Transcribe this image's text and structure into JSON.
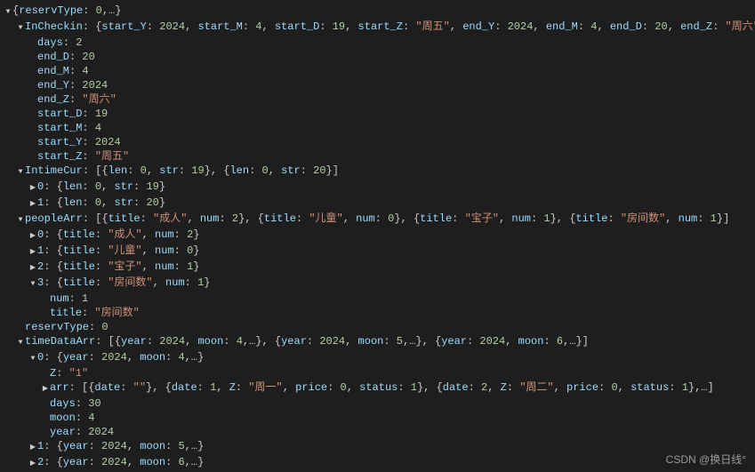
{
  "arrows": {
    "down": "▼",
    "right": "▶"
  },
  "line0": {
    "arrow": "down",
    "segs": [
      [
        "p",
        "{"
      ],
      [
        "k",
        "reservType"
      ],
      [
        "p",
        ": "
      ],
      [
        "n",
        "0"
      ],
      [
        "p",
        ",…}"
      ]
    ]
  },
  "line1": {
    "arrow": "down",
    "indent": 1,
    "segs": [
      [
        "k",
        "InCheckin"
      ],
      [
        "p",
        ": {"
      ],
      [
        "k",
        "start_Y"
      ],
      [
        "p",
        ": "
      ],
      [
        "n",
        "2024"
      ],
      [
        "p",
        ", "
      ],
      [
        "k",
        "start_M"
      ],
      [
        "p",
        ": "
      ],
      [
        "n",
        "4"
      ],
      [
        "p",
        ", "
      ],
      [
        "k",
        "start_D"
      ],
      [
        "p",
        ": "
      ],
      [
        "n",
        "19"
      ],
      [
        "p",
        ", "
      ],
      [
        "k",
        "start_Z"
      ],
      [
        "p",
        ": "
      ],
      [
        "s",
        "\"周五\""
      ],
      [
        "p",
        ", "
      ],
      [
        "k",
        "end_Y"
      ],
      [
        "p",
        ": "
      ],
      [
        "n",
        "2024"
      ],
      [
        "p",
        ", "
      ],
      [
        "k",
        "end_M"
      ],
      [
        "p",
        ": "
      ],
      [
        "n",
        "4"
      ],
      [
        "p",
        ", "
      ],
      [
        "k",
        "end_D"
      ],
      [
        "p",
        ": "
      ],
      [
        "n",
        "20"
      ],
      [
        "p",
        ", "
      ],
      [
        "k",
        "end_Z"
      ],
      [
        "p",
        ": "
      ],
      [
        "s",
        "\"周六\""
      ],
      [
        "p",
        ",…}"
      ]
    ]
  },
  "line2": {
    "indent": 2,
    "segs": [
      [
        "k",
        "days"
      ],
      [
        "p",
        ": "
      ],
      [
        "n",
        "2"
      ]
    ]
  },
  "line3": {
    "indent": 2,
    "segs": [
      [
        "k",
        "end_D"
      ],
      [
        "p",
        ": "
      ],
      [
        "n",
        "20"
      ]
    ]
  },
  "line4": {
    "indent": 2,
    "segs": [
      [
        "k",
        "end_M"
      ],
      [
        "p",
        ": "
      ],
      [
        "n",
        "4"
      ]
    ]
  },
  "line5": {
    "indent": 2,
    "segs": [
      [
        "k",
        "end_Y"
      ],
      [
        "p",
        ": "
      ],
      [
        "n",
        "2024"
      ]
    ]
  },
  "line6": {
    "indent": 2,
    "segs": [
      [
        "k",
        "end_Z"
      ],
      [
        "p",
        ": "
      ],
      [
        "s",
        "\"周六\""
      ]
    ]
  },
  "line7": {
    "indent": 2,
    "segs": [
      [
        "k",
        "start_D"
      ],
      [
        "p",
        ": "
      ],
      [
        "n",
        "19"
      ]
    ]
  },
  "line8": {
    "indent": 2,
    "segs": [
      [
        "k",
        "start_M"
      ],
      [
        "p",
        ": "
      ],
      [
        "n",
        "4"
      ]
    ]
  },
  "line9": {
    "indent": 2,
    "segs": [
      [
        "k",
        "start_Y"
      ],
      [
        "p",
        ": "
      ],
      [
        "n",
        "2024"
      ]
    ]
  },
  "line10": {
    "indent": 2,
    "segs": [
      [
        "k",
        "start_Z"
      ],
      [
        "p",
        ": "
      ],
      [
        "s",
        "\"周五\""
      ]
    ]
  },
  "line11": {
    "arrow": "down",
    "indent": 1,
    "segs": [
      [
        "k",
        "IntimeCur"
      ],
      [
        "p",
        ": [{"
      ],
      [
        "k",
        "len"
      ],
      [
        "p",
        ": "
      ],
      [
        "n",
        "0"
      ],
      [
        "p",
        ", "
      ],
      [
        "k",
        "str"
      ],
      [
        "p",
        ": "
      ],
      [
        "n",
        "19"
      ],
      [
        "p",
        "}, {"
      ],
      [
        "k",
        "len"
      ],
      [
        "p",
        ": "
      ],
      [
        "n",
        "0"
      ],
      [
        "p",
        ", "
      ],
      [
        "k",
        "str"
      ],
      [
        "p",
        ": "
      ],
      [
        "n",
        "20"
      ],
      [
        "p",
        "}]"
      ]
    ]
  },
  "line12": {
    "arrow": "right",
    "indent": 2,
    "segs": [
      [
        "k",
        "0"
      ],
      [
        "p",
        ": {"
      ],
      [
        "k",
        "len"
      ],
      [
        "p",
        ": "
      ],
      [
        "n",
        "0"
      ],
      [
        "p",
        ", "
      ],
      [
        "k",
        "str"
      ],
      [
        "p",
        ": "
      ],
      [
        "n",
        "19"
      ],
      [
        "p",
        "}"
      ]
    ]
  },
  "line13": {
    "arrow": "right",
    "indent": 2,
    "segs": [
      [
        "k",
        "1"
      ],
      [
        "p",
        ": {"
      ],
      [
        "k",
        "len"
      ],
      [
        "p",
        ": "
      ],
      [
        "n",
        "0"
      ],
      [
        "p",
        ", "
      ],
      [
        "k",
        "str"
      ],
      [
        "p",
        ": "
      ],
      [
        "n",
        "20"
      ],
      [
        "p",
        "}"
      ]
    ]
  },
  "line14": {
    "arrow": "down",
    "indent": 1,
    "segs": [
      [
        "k",
        "peopleArr"
      ],
      [
        "p",
        ": [{"
      ],
      [
        "k",
        "title"
      ],
      [
        "p",
        ": "
      ],
      [
        "s",
        "\"成人\""
      ],
      [
        "p",
        ", "
      ],
      [
        "k",
        "num"
      ],
      [
        "p",
        ": "
      ],
      [
        "n",
        "2"
      ],
      [
        "p",
        "}, {"
      ],
      [
        "k",
        "title"
      ],
      [
        "p",
        ": "
      ],
      [
        "s",
        "\"儿童\""
      ],
      [
        "p",
        ", "
      ],
      [
        "k",
        "num"
      ],
      [
        "p",
        ": "
      ],
      [
        "n",
        "0"
      ],
      [
        "p",
        "}, {"
      ],
      [
        "k",
        "title"
      ],
      [
        "p",
        ": "
      ],
      [
        "s",
        "\"宝子\""
      ],
      [
        "p",
        ", "
      ],
      [
        "k",
        "num"
      ],
      [
        "p",
        ": "
      ],
      [
        "n",
        "1"
      ],
      [
        "p",
        "}, {"
      ],
      [
        "k",
        "title"
      ],
      [
        "p",
        ": "
      ],
      [
        "s",
        "\"房间数\""
      ],
      [
        "p",
        ", "
      ],
      [
        "k",
        "num"
      ],
      [
        "p",
        ": "
      ],
      [
        "n",
        "1"
      ],
      [
        "p",
        "}]"
      ]
    ]
  },
  "line15": {
    "arrow": "right",
    "indent": 2,
    "segs": [
      [
        "k",
        "0"
      ],
      [
        "p",
        ": {"
      ],
      [
        "k",
        "title"
      ],
      [
        "p",
        ": "
      ],
      [
        "s",
        "\"成人\""
      ],
      [
        "p",
        ", "
      ],
      [
        "k",
        "num"
      ],
      [
        "p",
        ": "
      ],
      [
        "n",
        "2"
      ],
      [
        "p",
        "}"
      ]
    ]
  },
  "line16": {
    "arrow": "right",
    "indent": 2,
    "segs": [
      [
        "k",
        "1"
      ],
      [
        "p",
        ": {"
      ],
      [
        "k",
        "title"
      ],
      [
        "p",
        ": "
      ],
      [
        "s",
        "\"儿童\""
      ],
      [
        "p",
        ", "
      ],
      [
        "k",
        "num"
      ],
      [
        "p",
        ": "
      ],
      [
        "n",
        "0"
      ],
      [
        "p",
        "}"
      ]
    ]
  },
  "line17": {
    "arrow": "right",
    "indent": 2,
    "segs": [
      [
        "k",
        "2"
      ],
      [
        "p",
        ": {"
      ],
      [
        "k",
        "title"
      ],
      [
        "p",
        ": "
      ],
      [
        "s",
        "\"宝子\""
      ],
      [
        "p",
        ", "
      ],
      [
        "k",
        "num"
      ],
      [
        "p",
        ": "
      ],
      [
        "n",
        "1"
      ],
      [
        "p",
        "}"
      ]
    ]
  },
  "line18": {
    "arrow": "down",
    "indent": 2,
    "segs": [
      [
        "k",
        "3"
      ],
      [
        "p",
        ": {"
      ],
      [
        "k",
        "title"
      ],
      [
        "p",
        ": "
      ],
      [
        "s",
        "\"房间数\""
      ],
      [
        "p",
        ", "
      ],
      [
        "k",
        "num"
      ],
      [
        "p",
        ": "
      ],
      [
        "n",
        "1"
      ],
      [
        "p",
        "}"
      ]
    ]
  },
  "line19": {
    "indent": 3,
    "segs": [
      [
        "k",
        "num"
      ],
      [
        "p",
        ": "
      ],
      [
        "n",
        "1"
      ]
    ]
  },
  "line20": {
    "indent": 3,
    "segs": [
      [
        "k",
        "title"
      ],
      [
        "p",
        ": "
      ],
      [
        "s",
        "\"房间数\""
      ]
    ]
  },
  "line21": {
    "indent": 1,
    "segs": [
      [
        "k",
        "reservType"
      ],
      [
        "p",
        ": "
      ],
      [
        "n",
        "0"
      ]
    ]
  },
  "line22": {
    "arrow": "down",
    "indent": 1,
    "segs": [
      [
        "k",
        "timeDataArr"
      ],
      [
        "p",
        ": [{"
      ],
      [
        "k",
        "year"
      ],
      [
        "p",
        ": "
      ],
      [
        "n",
        "2024"
      ],
      [
        "p",
        ", "
      ],
      [
        "k",
        "moon"
      ],
      [
        "p",
        ": "
      ],
      [
        "n",
        "4"
      ],
      [
        "p",
        ",…}, {"
      ],
      [
        "k",
        "year"
      ],
      [
        "p",
        ": "
      ],
      [
        "n",
        "2024"
      ],
      [
        "p",
        ", "
      ],
      [
        "k",
        "moon"
      ],
      [
        "p",
        ": "
      ],
      [
        "n",
        "5"
      ],
      [
        "p",
        ",…}, {"
      ],
      [
        "k",
        "year"
      ],
      [
        "p",
        ": "
      ],
      [
        "n",
        "2024"
      ],
      [
        "p",
        ", "
      ],
      [
        "k",
        "moon"
      ],
      [
        "p",
        ": "
      ],
      [
        "n",
        "6"
      ],
      [
        "p",
        ",…}]"
      ]
    ]
  },
  "line23": {
    "arrow": "down",
    "indent": 2,
    "segs": [
      [
        "k",
        "0"
      ],
      [
        "p",
        ": {"
      ],
      [
        "k",
        "year"
      ],
      [
        "p",
        ": "
      ],
      [
        "n",
        "2024"
      ],
      [
        "p",
        ", "
      ],
      [
        "k",
        "moon"
      ],
      [
        "p",
        ": "
      ],
      [
        "n",
        "4"
      ],
      [
        "p",
        ",…}"
      ]
    ]
  },
  "line24": {
    "indent": 3,
    "segs": [
      [
        "k",
        "Z"
      ],
      [
        "p",
        ": "
      ],
      [
        "s",
        "\"1\""
      ]
    ]
  },
  "line25": {
    "arrow": "right",
    "indent": 3,
    "segs": [
      [
        "k",
        "arr"
      ],
      [
        "p",
        ": [{"
      ],
      [
        "k",
        "date"
      ],
      [
        "p",
        ": "
      ],
      [
        "s",
        "\"\""
      ],
      [
        "p",
        "}, {"
      ],
      [
        "k",
        "date"
      ],
      [
        "p",
        ": "
      ],
      [
        "n",
        "1"
      ],
      [
        "p",
        ", "
      ],
      [
        "k",
        "Z"
      ],
      [
        "p",
        ": "
      ],
      [
        "s",
        "\"周一\""
      ],
      [
        "p",
        ", "
      ],
      [
        "k",
        "price"
      ],
      [
        "p",
        ": "
      ],
      [
        "n",
        "0"
      ],
      [
        "p",
        ", "
      ],
      [
        "k",
        "status"
      ],
      [
        "p",
        ": "
      ],
      [
        "n",
        "1"
      ],
      [
        "p",
        "}, {"
      ],
      [
        "k",
        "date"
      ],
      [
        "p",
        ": "
      ],
      [
        "n",
        "2"
      ],
      [
        "p",
        ", "
      ],
      [
        "k",
        "Z"
      ],
      [
        "p",
        ": "
      ],
      [
        "s",
        "\"周二\""
      ],
      [
        "p",
        ", "
      ],
      [
        "k",
        "price"
      ],
      [
        "p",
        ": "
      ],
      [
        "n",
        "0"
      ],
      [
        "p",
        ", "
      ],
      [
        "k",
        "status"
      ],
      [
        "p",
        ": "
      ],
      [
        "n",
        "1"
      ],
      [
        "p",
        "},…]"
      ]
    ]
  },
  "line26": {
    "indent": 3,
    "segs": [
      [
        "k",
        "days"
      ],
      [
        "p",
        ": "
      ],
      [
        "n",
        "30"
      ]
    ]
  },
  "line27": {
    "indent": 3,
    "segs": [
      [
        "k",
        "moon"
      ],
      [
        "p",
        ": "
      ],
      [
        "n",
        "4"
      ]
    ]
  },
  "line28": {
    "indent": 3,
    "segs": [
      [
        "k",
        "year"
      ],
      [
        "p",
        ": "
      ],
      [
        "n",
        "2024"
      ]
    ]
  },
  "line29": {
    "arrow": "right",
    "indent": 2,
    "segs": [
      [
        "k",
        "1"
      ],
      [
        "p",
        ": {"
      ],
      [
        "k",
        "year"
      ],
      [
        "p",
        ": "
      ],
      [
        "n",
        "2024"
      ],
      [
        "p",
        ", "
      ],
      [
        "k",
        "moon"
      ],
      [
        "p",
        ": "
      ],
      [
        "n",
        "5"
      ],
      [
        "p",
        ",…}"
      ]
    ]
  },
  "line30": {
    "arrow": "right",
    "indent": 2,
    "segs": [
      [
        "k",
        "2"
      ],
      [
        "p",
        ": {"
      ],
      [
        "k",
        "year"
      ],
      [
        "p",
        ": "
      ],
      [
        "n",
        "2024"
      ],
      [
        "p",
        ", "
      ],
      [
        "k",
        "moon"
      ],
      [
        "p",
        ": "
      ],
      [
        "n",
        "6"
      ],
      [
        "p",
        ",…}"
      ]
    ]
  },
  "watermark": "CSDN @换日线°",
  "colors": {
    "background": "#1e1e1e",
    "text": "#cccccc",
    "key": "#9cdcfe",
    "string": "#ce9178",
    "number": "#b5cea8"
  }
}
